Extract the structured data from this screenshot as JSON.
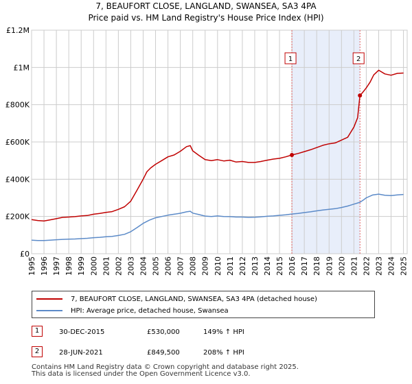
{
  "chart_data": {
    "type": "line",
    "title": "7, BEAUFORT CLOSE, LANGLAND, SWANSEA, SA3 4PA",
    "subtitle": "Price paid vs. HM Land Registry's House Price Index (HPI)",
    "xlabel": "",
    "ylabel": "",
    "xlim": [
      1995,
      2025.3
    ],
    "ylim": [
      0,
      1200000
    ],
    "grid": true,
    "y_ticks": [
      0,
      200000,
      400000,
      600000,
      800000,
      1000000,
      1200000
    ],
    "y_tick_labels": [
      "£0",
      "£200K",
      "£400K",
      "£600K",
      "£800K",
      "£1M",
      "£1.2M"
    ],
    "x_ticks": [
      1995,
      1996,
      1997,
      1998,
      1999,
      2000,
      2001,
      2002,
      2003,
      2004,
      2005,
      2006,
      2007,
      2008,
      2009,
      2010,
      2011,
      2012,
      2013,
      2014,
      2015,
      2016,
      2017,
      2018,
      2019,
      2020,
      2021,
      2022,
      2023,
      2024,
      2025
    ],
    "x_tick_labels": [
      "1995",
      "1996",
      "1997",
      "1998",
      "1999",
      "2000",
      "2001",
      "2002",
      "2003",
      "2004",
      "2005",
      "2006",
      "2007",
      "2008",
      "2009",
      "2010",
      "2011",
      "2012",
      "2013",
      "2014",
      "2015",
      "2016",
      "2017",
      "2018",
      "2019",
      "2020",
      "2021",
      "2022",
      "2023",
      "2024",
      "2025"
    ],
    "shaded_region": {
      "x": [
        2015.997,
        2021.49
      ],
      "color": "#e8eefa"
    },
    "series": [
      {
        "name": "7, BEAUFORT CLOSE, LANGLAND, SWANSEA, SA3 4PA (detached house)",
        "color": "#c00000",
        "x": [
          1995,
          1995.5,
          1996,
          1996.5,
          1997,
          1997.5,
          1998,
          1998.5,
          1999,
          1999.5,
          2000,
          2000.5,
          2001,
          2001.5,
          2002,
          2002.5,
          2003,
          2003.5,
          2004,
          2004.3,
          2004.6,
          2005,
          2005.5,
          2006,
          2006.5,
          2007,
          2007.5,
          2007.8,
          2008,
          2008.5,
          2009,
          2009.5,
          2010,
          2010.5,
          2011,
          2011.5,
          2012,
          2012.5,
          2013,
          2013.5,
          2014,
          2014.5,
          2015,
          2015.5,
          2015.997,
          2016.5,
          2017,
          2017.5,
          2018,
          2018.5,
          2019,
          2019.5,
          2020,
          2020.5,
          2021,
          2021.3,
          2021.49,
          2021.7,
          2022,
          2022.3,
          2022.6,
          2023,
          2023.5,
          2024,
          2024.5,
          2025
        ],
        "values": [
          183000,
          178000,
          176000,
          182000,
          188000,
          195000,
          197000,
          199000,
          203000,
          205000,
          212000,
          216000,
          222000,
          226000,
          238000,
          252000,
          282000,
          340000,
          400000,
          440000,
          460000,
          480000,
          500000,
          520000,
          530000,
          550000,
          575000,
          580000,
          552000,
          528000,
          505000,
          500000,
          505000,
          498000,
          502000,
          492000,
          495000,
          490000,
          490000,
          495000,
          502000,
          508000,
          512000,
          520000,
          530000,
          538000,
          548000,
          558000,
          570000,
          582000,
          590000,
          595000,
          610000,
          625000,
          680000,
          730000,
          849500,
          865000,
          890000,
          920000,
          960000,
          985000,
          965000,
          958000,
          968000,
          970000
        ]
      },
      {
        "name": "HPI: Average price, detached house, Swansea",
        "color": "#5b8ac8",
        "x": [
          1995,
          1995.5,
          1996,
          1996.5,
          1997,
          1997.5,
          1998,
          1998.5,
          1999,
          1999.5,
          2000,
          2000.5,
          2001,
          2001.5,
          2002,
          2002.5,
          2003,
          2003.5,
          2004,
          2004.5,
          2005,
          2005.5,
          2006,
          2006.5,
          2007,
          2007.5,
          2007.8,
          2008,
          2008.5,
          2009,
          2009.5,
          2010,
          2010.5,
          2011,
          2011.5,
          2012,
          2012.5,
          2013,
          2013.5,
          2014,
          2014.5,
          2015,
          2015.5,
          2015.997,
          2016.5,
          2017,
          2017.5,
          2018,
          2018.5,
          2019,
          2019.5,
          2020,
          2020.5,
          2021,
          2021.49,
          2021.8,
          2022,
          2022.5,
          2023,
          2023.5,
          2024,
          2024.5,
          2025
        ],
        "values": [
          73000,
          71000,
          71000,
          73000,
          75000,
          77000,
          78000,
          79000,
          81000,
          83000,
          86000,
          88000,
          91000,
          93000,
          98000,
          104000,
          118000,
          140000,
          163000,
          180000,
          193000,
          200000,
          207000,
          212000,
          217000,
          225000,
          228000,
          218000,
          210000,
          202000,
          200000,
          203000,
          200000,
          199000,
          197000,
          197000,
          195000,
          196000,
          198000,
          201000,
          203000,
          206000,
          209000,
          213000,
          216000,
          221000,
          225000,
          230000,
          235000,
          238000,
          242000,
          248000,
          256000,
          266000,
          276000,
          290000,
          300000,
          315000,
          320000,
          314000,
          312000,
          316000,
          318000
        ]
      }
    ],
    "annotations": [
      {
        "label": "1",
        "x": 2015.997,
        "value": 530000
      },
      {
        "label": "2",
        "x": 2021.49,
        "value": 849500
      }
    ]
  },
  "legend": {
    "line1": "7, BEAUFORT CLOSE, LANGLAND, SWANSEA, SA3 4PA (detached house)",
    "line2": "HPI: Average price, detached house, Swansea",
    "color1": "#c00000",
    "color2": "#5b8ac8"
  },
  "transactions": [
    {
      "num": "1",
      "date": "30-DEC-2015",
      "price": "£530,000",
      "hpi": "149% ↑ HPI"
    },
    {
      "num": "2",
      "date": "28-JUN-2021",
      "price": "£849,500",
      "hpi": "208% ↑ HPI"
    }
  ],
  "footer": {
    "line1": "Contains HM Land Registry data © Crown copyright and database right 2025.",
    "line2": "This data is licensed under the Open Government Licence v3.0."
  }
}
